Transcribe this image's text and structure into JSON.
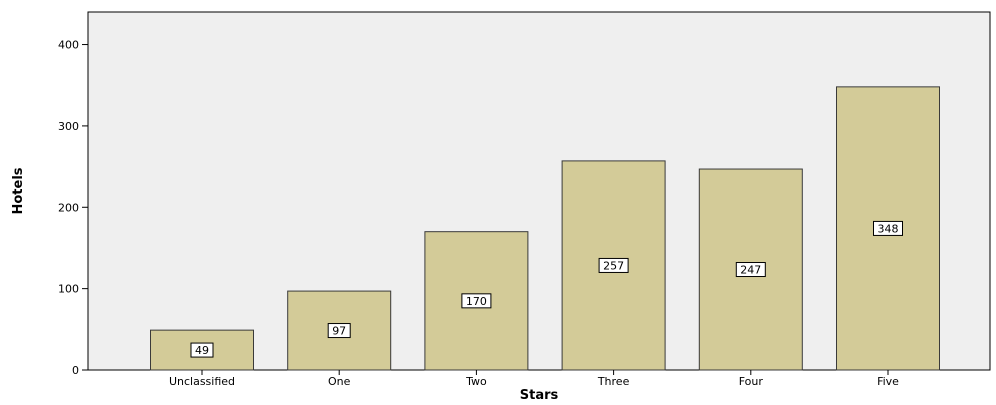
{
  "chart_data": {
    "type": "bar",
    "title": "",
    "xlabel": "Stars",
    "ylabel": "Hotels",
    "categories": [
      "Unclassified",
      "One",
      "Two",
      "Three",
      "Four",
      "Five"
    ],
    "values": [
      49,
      97,
      170,
      257,
      247,
      348
    ],
    "data_labels": [
      "49",
      "97",
      "170",
      "257",
      "247",
      "348"
    ],
    "yticks": [
      0,
      100,
      200,
      300,
      400
    ],
    "ytick_labels": [
      "0",
      "100",
      "200",
      "300",
      "400"
    ],
    "ylim": [
      0,
      440
    ],
    "grid": false,
    "legend": "none",
    "colors": {
      "bar_fill": "#d3cb98",
      "bar_stroke": "#3a3a3a",
      "plot_background": "#efefef",
      "label_box_fill": "#ffffff"
    }
  }
}
